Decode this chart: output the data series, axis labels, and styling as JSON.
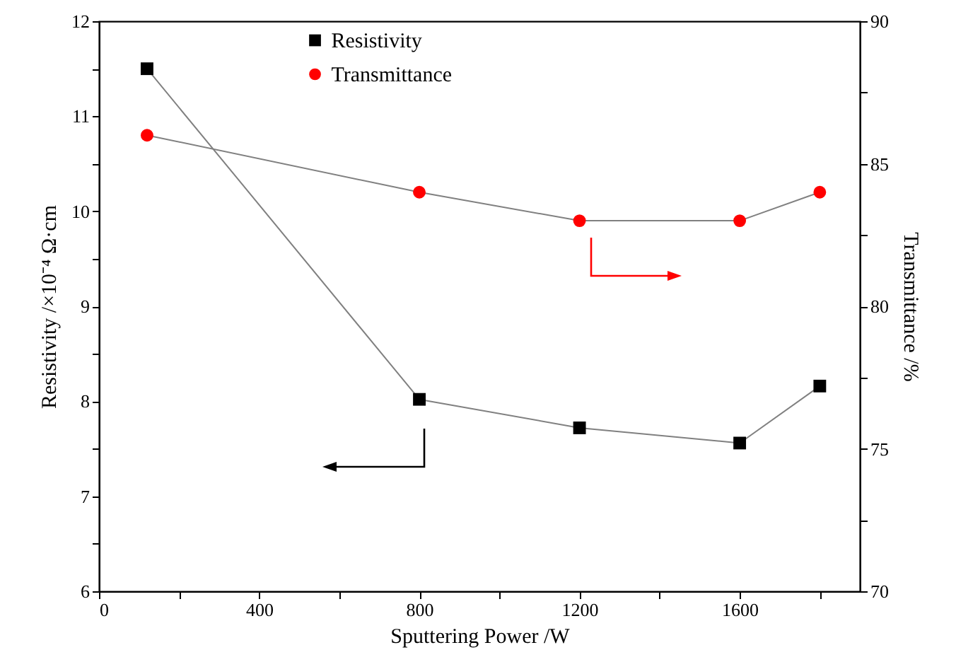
{
  "chart_data": {
    "type": "line",
    "xlabel": "Sputtering Power /W",
    "ylabel": "Resistivity /×10⁻⁴ Ω·cm",
    "y2label": "Transmittance /%",
    "x": [
      120,
      800,
      1200,
      1600,
      1800
    ],
    "series": [
      {
        "name": "Resistivity",
        "color": "#000000",
        "marker": "square",
        "values": [
          11.5,
          8.02,
          7.72,
          7.56,
          8.16
        ]
      },
      {
        "name": "Transmittance",
        "color": "#ff0000",
        "marker": "circle",
        "axis": "y2",
        "values": [
          86,
          84,
          83,
          83,
          84
        ]
      }
    ],
    "xlim": [
      0,
      1900
    ],
    "xticks": [
      0,
      {
        "value": 200,
        "label": null
      },
      400,
      {
        "value": 600,
        "label": null
      },
      800,
      {
        "value": 1000,
        "label": null
      },
      1200,
      {
        "value": 1400,
        "label": null
      },
      1600,
      {
        "value": 1800,
        "label": null
      }
    ],
    "ylim": [
      6,
      12
    ],
    "yticks": [
      6,
      {
        "value": 6.5,
        "label": null
      },
      7,
      {
        "value": 7.5,
        "label": null
      },
      8,
      {
        "value": 8.5,
        "label": null
      },
      9,
      {
        "value": 9.5,
        "label": null
      },
      10,
      {
        "value": 10.5,
        "label": null
      },
      11,
      {
        "value": 11.5,
        "label": null
      },
      12
    ],
    "y2lim": [
      70,
      90
    ],
    "y2ticks": [
      70,
      {
        "value": 72.5,
        "label": null
      },
      75,
      {
        "value": 77.5,
        "label": null
      },
      80,
      {
        "value": 82.5,
        "label": null
      },
      85,
      {
        "value": 87.5,
        "label": null
      },
      90
    ],
    "legend": "top",
    "grid": false
  }
}
